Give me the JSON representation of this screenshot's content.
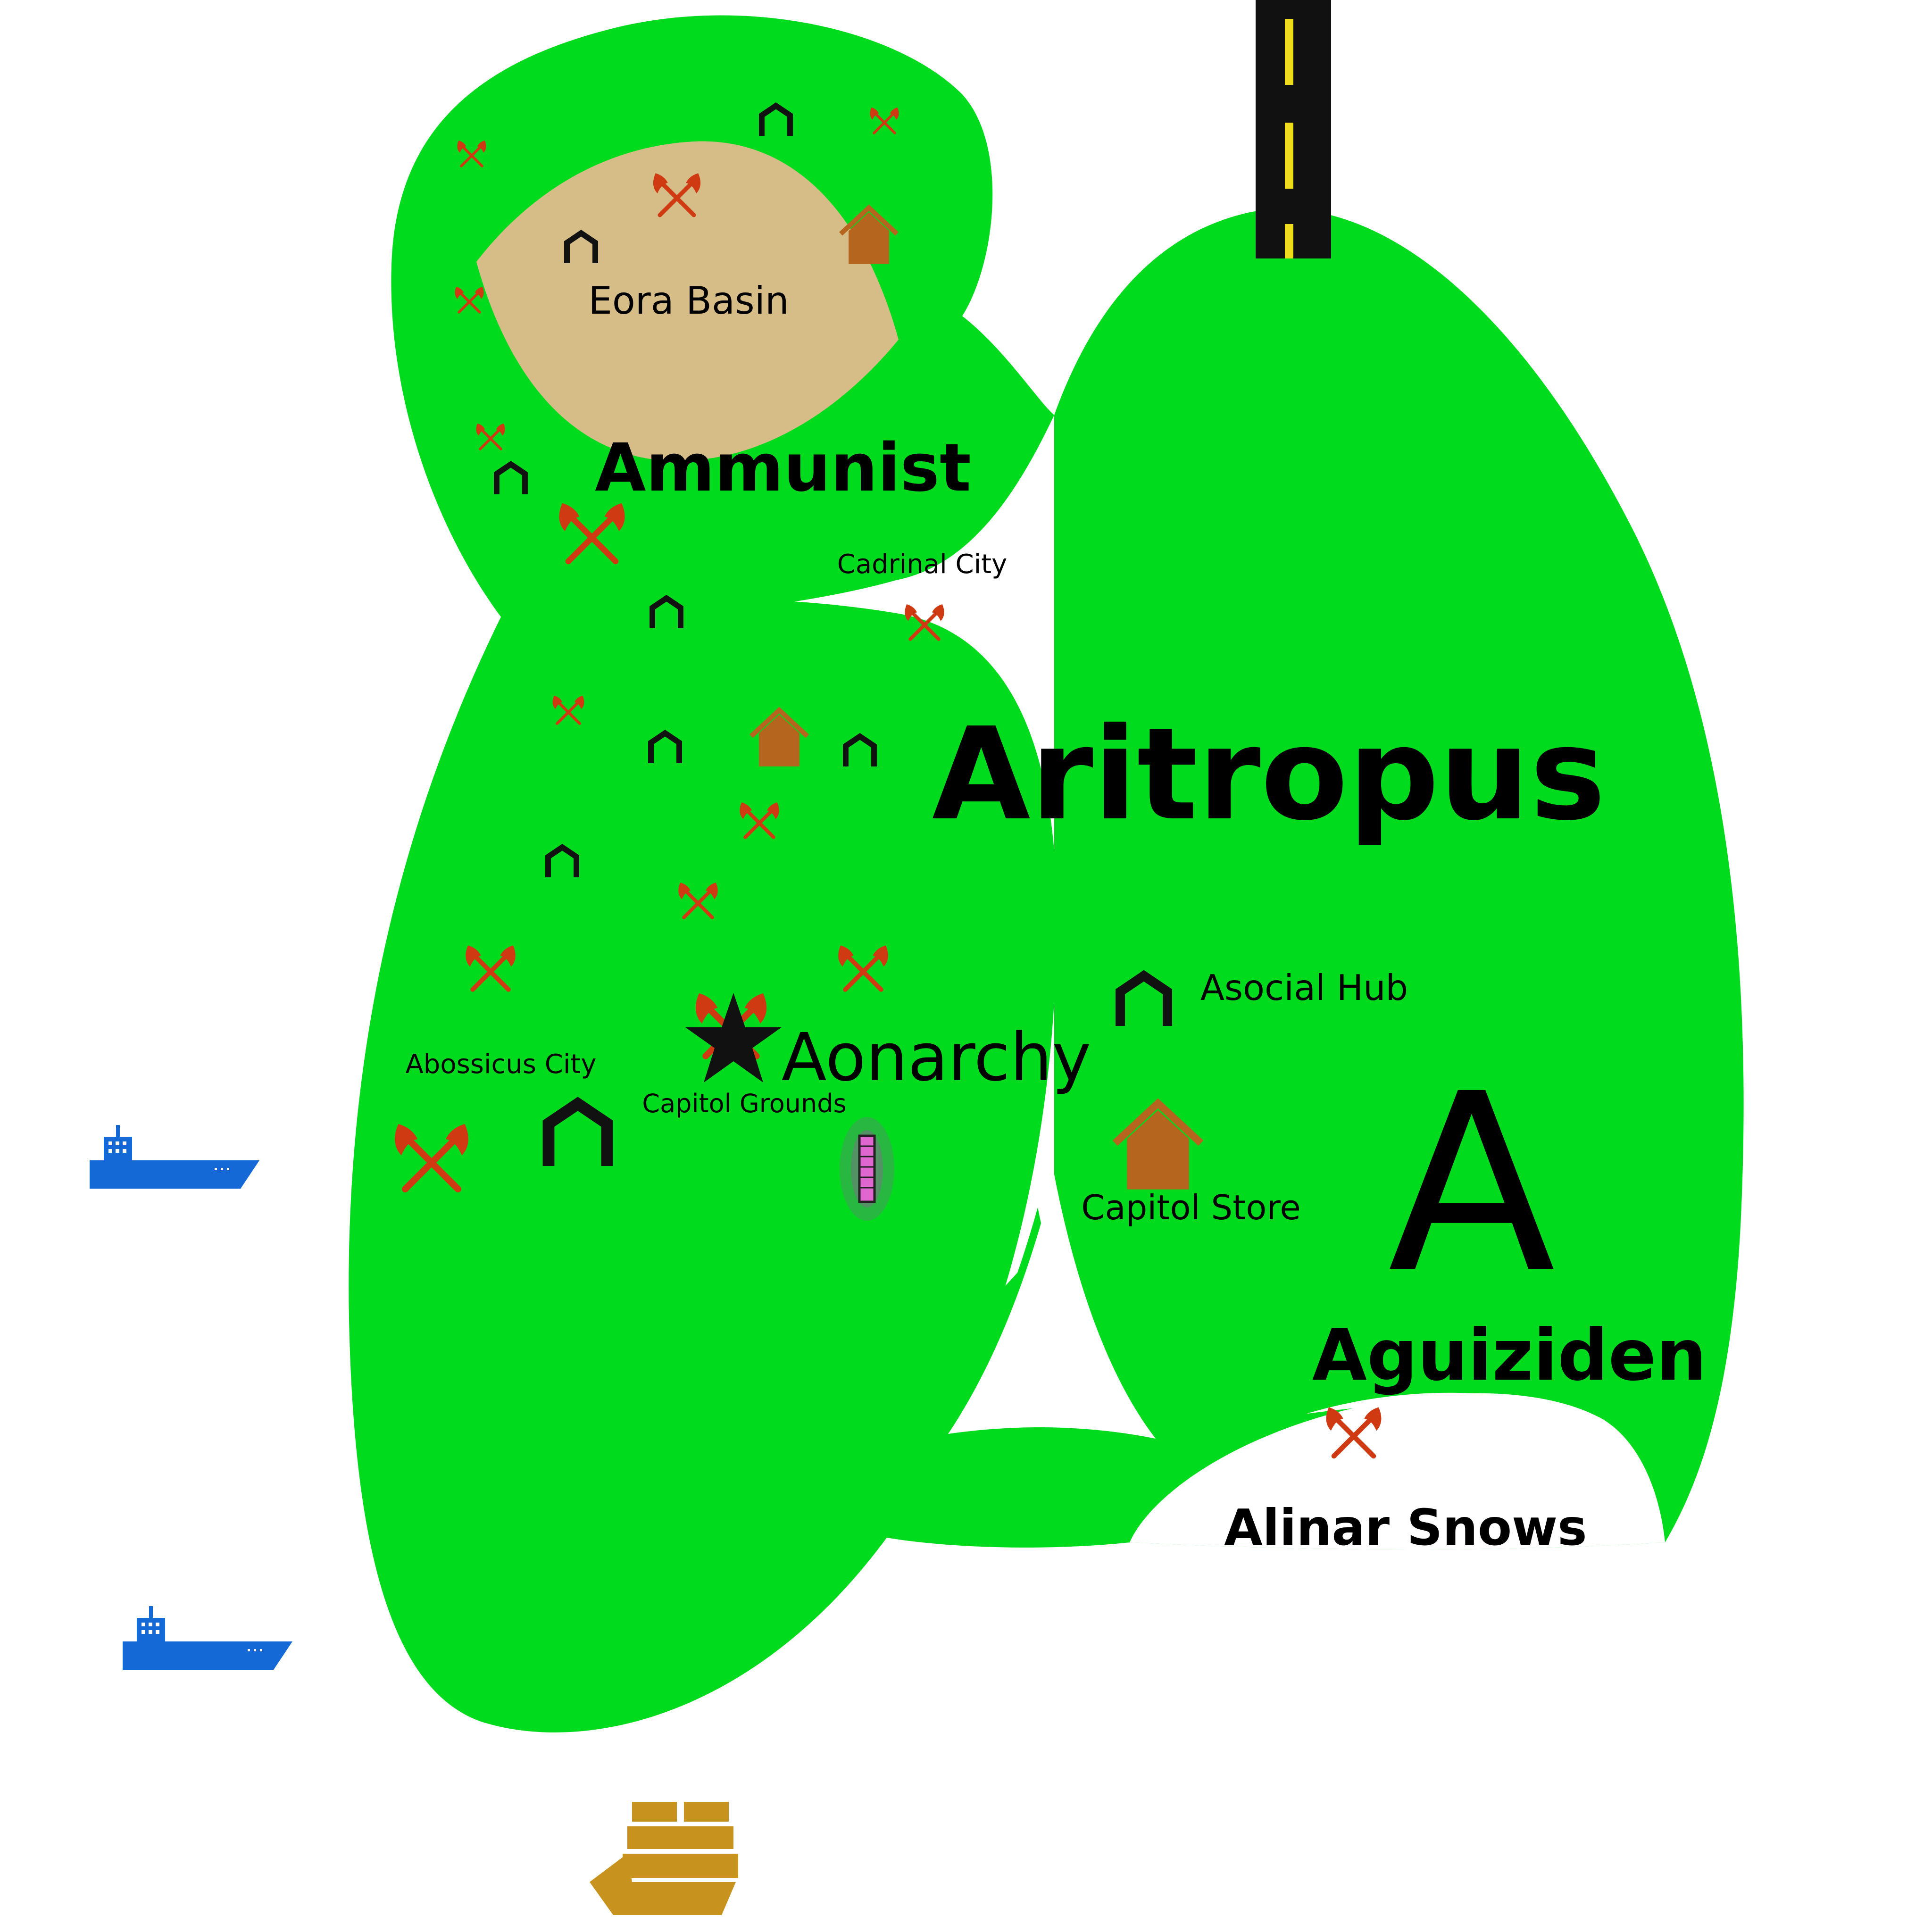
{
  "colors": {
    "land": "#00DB1E",
    "basin": "#D6BD87",
    "road": "#111111",
    "road_marking": "#F0DC1E",
    "axes": "#D03A12",
    "arch": "#111111",
    "house": "#B5651D",
    "ship": "#1469D6",
    "sailship": "#C8921E",
    "tower": "#E066D0",
    "star": "#111111"
  },
  "map": {
    "labels": {
      "country": "Aritropus",
      "ammunist": "Ammunist",
      "eora_basin": "Eora Basin",
      "cadrinal_city": "Cadrinal City",
      "aonarchy": "Aonarchy",
      "abossicus_city": "Abossicus City",
      "capitol_grounds": "Capitol Grounds",
      "asocial_hub": "Asocial Hub",
      "capitol_store": "Capitol Store",
      "aguiziden": "Aguiziden",
      "alinar_snows": "Alinar Snows",
      "region_letter": "A"
    },
    "icons": {
      "capital": "star-icon",
      "city": "arch-icon",
      "store": "house-icon",
      "military": "crossed-axes-icon",
      "tower": "tower-icon",
      "cargo_ship": "cargo-ship-icon",
      "sailing_ship": "sailing-ship-icon",
      "road": "road"
    }
  }
}
